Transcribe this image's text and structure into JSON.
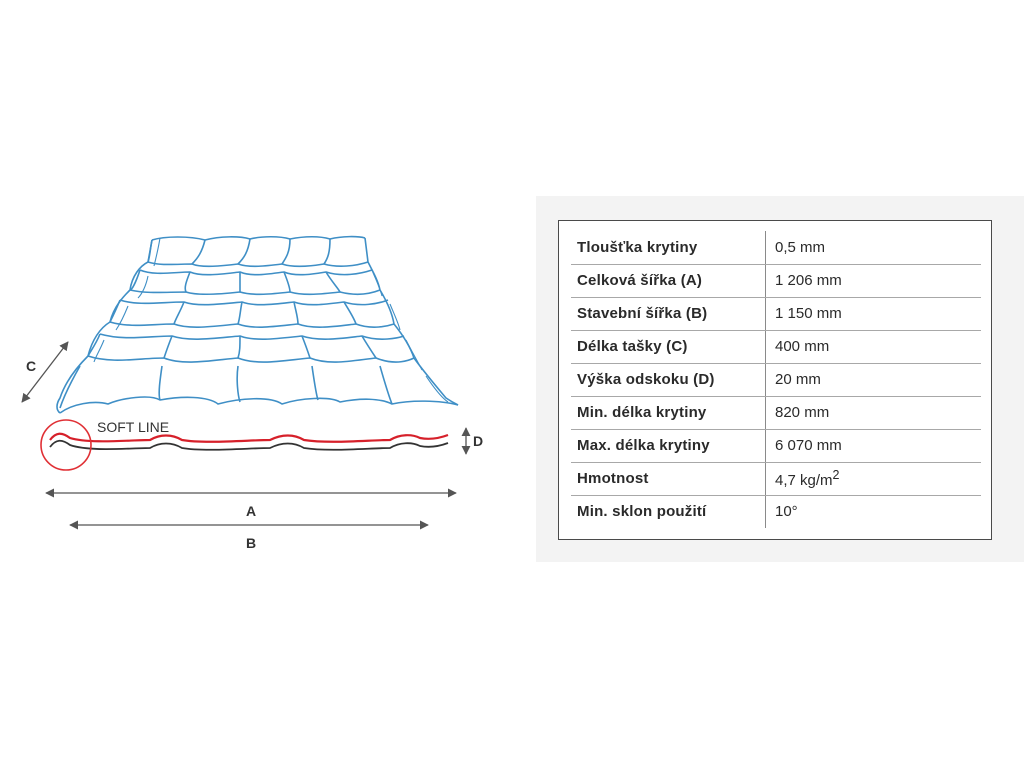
{
  "diagram": {
    "profile_name": "SOFT LINE",
    "dimension_labels": {
      "a": "A",
      "b": "B",
      "c": "C",
      "d": "D"
    },
    "colors": {
      "tile_outline": "#3f8fc6",
      "profile_top": "#d6202a",
      "profile_bottom": "#333333",
      "highlight_circle": "#e03035",
      "dimension_lines": "#555555"
    }
  },
  "spec_table": {
    "rows": [
      {
        "label": "Tloušťka krytiny",
        "value": "0,5 mm"
      },
      {
        "label": "Celková šířka (A)",
        "value": "1 206 mm"
      },
      {
        "label": "Stavební šířka (B)",
        "value": "1 150 mm"
      },
      {
        "label": "Délka tašky (C)",
        "value": "400 mm"
      },
      {
        "label": "Výška odskoku (D)",
        "value": "20 mm"
      },
      {
        "label": "Min. délka krytiny",
        "value": "820 mm"
      },
      {
        "label": "Max. délka krytiny",
        "value": "6 070 mm"
      },
      {
        "label": "Hmotnost",
        "value": "4,7 kg/m",
        "value_superscript": "2"
      },
      {
        "label": "Min. sklon použití",
        "value": "10°"
      }
    ]
  }
}
